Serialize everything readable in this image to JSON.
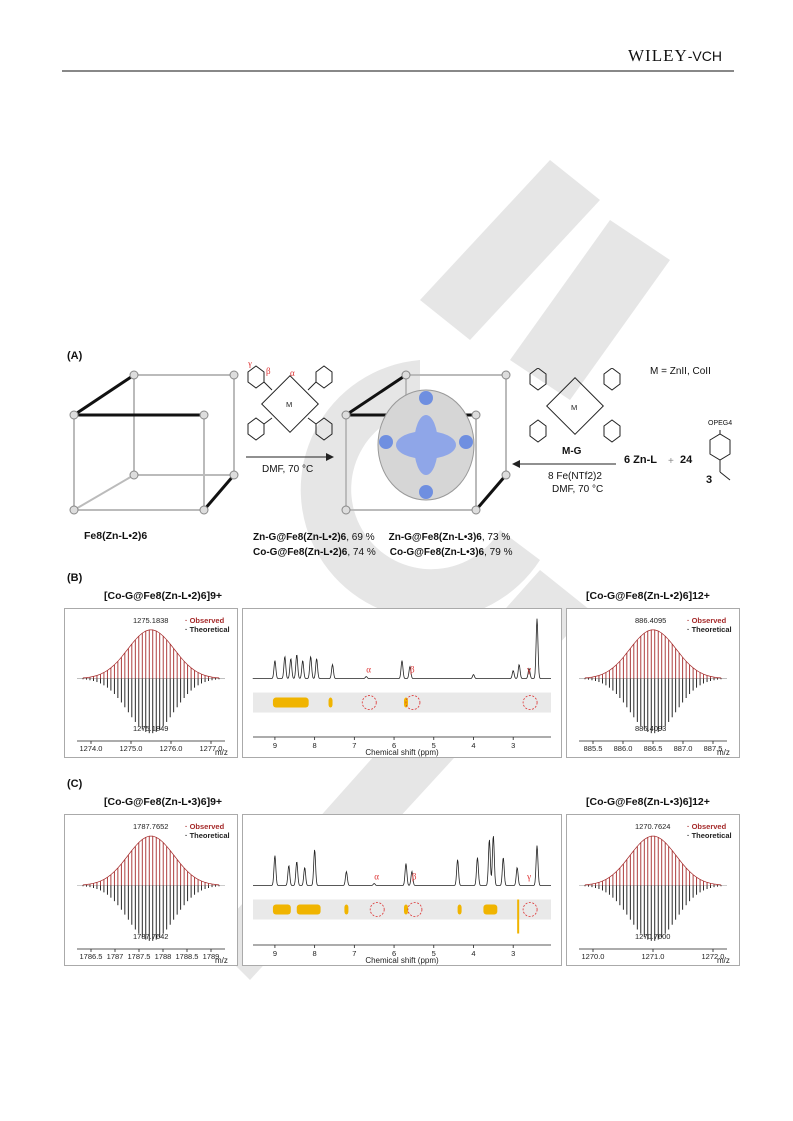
{
  "header": {
    "publisher_main": "WILEY",
    "publisher_suffix": "-VCH"
  },
  "panelA": {
    "label": "(A)",
    "cage_label_left": "Fe8(Zn-L•2)6",
    "arrow1_condition": "DMF, 70 °C",
    "arrow2_line1": "8 Fe(NTf2)2",
    "arrow2_line2": "DMF, 70 °C",
    "guest_label": "M-G",
    "metal_def": "M = ZnII, CoII",
    "reagent_zn": "6 Zn-L",
    "plus": "+",
    "reagent_count": "24",
    "reagent_number": "3",
    "reagent_substituent": "OPEG4",
    "greek": {
      "alpha": "α",
      "beta": "β",
      "gamma": "γ"
    },
    "yields": [
      {
        "name": "Zn-G@Fe8(Zn-L•2)6",
        "value": ", 69 %"
      },
      {
        "name": "Zn-G@Fe8(Zn-L•3)6",
        "value": ", 73 %"
      },
      {
        "name": "Co-G@Fe8(Zn-L•2)6",
        "value": ", 74 %"
      },
      {
        "name": "Co-G@Fe8(Zn-L•3)6",
        "value": ", 79 %"
      }
    ]
  },
  "panelB": {
    "label": "(B)",
    "ms_left": {
      "title": "[Co-G@Fe8(Zn-L•2)6]9+",
      "observed_peak": "1275.1838",
      "theoretical_peak": "1275.1849",
      "ticks": [
        "1274.0",
        "1275.0",
        "1276.0",
        "1277.0"
      ],
      "xlabel": "m/z"
    },
    "ms_right": {
      "title": "[Co-G@Fe8(Zn-L•2)6]12+",
      "observed_peak": "886.4095",
      "theoretical_peak": "886.4093",
      "ticks": [
        "885.5",
        "886.0",
        "886.5",
        "887.0",
        "887.5"
      ],
      "xlabel": "m/z"
    },
    "nmr": {
      "xlabel": "Chemical shift (ppm)",
      "ticks": [
        "9",
        "8",
        "7",
        "6",
        "5",
        "4",
        "3"
      ]
    }
  },
  "panelC": {
    "label": "(C)",
    "ms_left": {
      "title": "[Co-G@Fe8(Zn-L•3)6]9+",
      "observed_peak": "1787.7652",
      "theoretical_peak": "1787.7642",
      "ticks": [
        "1786.5",
        "1787",
        "1787.5",
        "1788",
        "1788.5",
        "1789"
      ],
      "xlabel": "m/z"
    },
    "ms_right": {
      "title": "[Co-G@Fe8(Zn-L•3)6]12+",
      "observed_peak": "1270.7624",
      "theoretical_peak": "1270.7600",
      "ticks": [
        "1270.0",
        "1271.0",
        "1272.0"
      ],
      "xlabel": "m/z"
    },
    "nmr": {
      "xlabel": "Chemical shift (ppm)",
      "ticks": [
        "9",
        "8",
        "7",
        "6",
        "5",
        "4",
        "3"
      ]
    }
  },
  "legend": {
    "observed": "Observed",
    "theoretical": "Theoretical"
  },
  "colors": {
    "observed": "#a52a2a",
    "theoretical": "#111111",
    "dosy": "#f0b400",
    "greek": "#d33333",
    "guest": "#6f8fe0"
  }
}
